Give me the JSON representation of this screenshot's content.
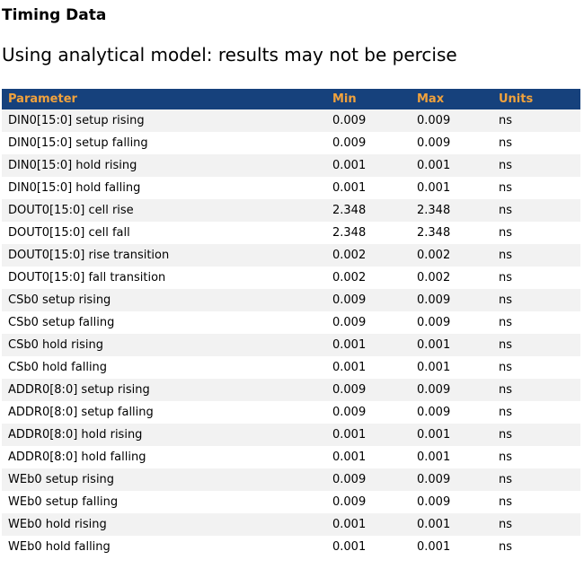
{
  "page": {
    "title": "Timing Data",
    "subtitle": "Using analytical model: results may not be percise"
  },
  "table": {
    "columns": [
      {
        "key": "parameter",
        "label": "Parameter"
      },
      {
        "key": "min",
        "label": "Min"
      },
      {
        "key": "max",
        "label": "Max"
      },
      {
        "key": "units",
        "label": "Units"
      }
    ],
    "rows": [
      {
        "parameter": "DIN0[15:0] setup rising",
        "min": "0.009",
        "max": "0.009",
        "units": "ns"
      },
      {
        "parameter": "DIN0[15:0] setup falling",
        "min": "0.009",
        "max": "0.009",
        "units": "ns"
      },
      {
        "parameter": "DIN0[15:0] hold rising",
        "min": "0.001",
        "max": "0.001",
        "units": "ns"
      },
      {
        "parameter": "DIN0[15:0] hold falling",
        "min": "0.001",
        "max": "0.001",
        "units": "ns"
      },
      {
        "parameter": "DOUT0[15:0] cell rise",
        "min": "2.348",
        "max": "2.348",
        "units": "ns"
      },
      {
        "parameter": "DOUT0[15:0] cell fall",
        "min": "2.348",
        "max": "2.348",
        "units": "ns"
      },
      {
        "parameter": "DOUT0[15:0] rise transition",
        "min": "0.002",
        "max": "0.002",
        "units": "ns"
      },
      {
        "parameter": "DOUT0[15:0] fall transition",
        "min": "0.002",
        "max": "0.002",
        "units": "ns"
      },
      {
        "parameter": "CSb0 setup rising",
        "min": "0.009",
        "max": "0.009",
        "units": "ns"
      },
      {
        "parameter": "CSb0 setup falling",
        "min": "0.009",
        "max": "0.009",
        "units": "ns"
      },
      {
        "parameter": "CSb0 hold rising",
        "min": "0.001",
        "max": "0.001",
        "units": "ns"
      },
      {
        "parameter": "CSb0 hold falling",
        "min": "0.001",
        "max": "0.001",
        "units": "ns"
      },
      {
        "parameter": "ADDR0[8:0] setup rising",
        "min": "0.009",
        "max": "0.009",
        "units": "ns"
      },
      {
        "parameter": "ADDR0[8:0] setup falling",
        "min": "0.009",
        "max": "0.009",
        "units": "ns"
      },
      {
        "parameter": "ADDR0[8:0] hold rising",
        "min": "0.001",
        "max": "0.001",
        "units": "ns"
      },
      {
        "parameter": "ADDR0[8:0] hold falling",
        "min": "0.001",
        "max": "0.001",
        "units": "ns"
      },
      {
        "parameter": "WEb0 setup rising",
        "min": "0.009",
        "max": "0.009",
        "units": "ns"
      },
      {
        "parameter": "WEb0 setup falling",
        "min": "0.009",
        "max": "0.009",
        "units": "ns"
      },
      {
        "parameter": "WEb0 hold rising",
        "min": "0.001",
        "max": "0.001",
        "units": "ns"
      },
      {
        "parameter": "WEb0 hold falling",
        "min": "0.001",
        "max": "0.001",
        "units": "ns"
      }
    ]
  },
  "colors": {
    "header_bg": "#16417C",
    "header_text": "#F1A23C",
    "row_alt_bg": "#F2F2F2",
    "row_bg": "#FFFFFF",
    "text": "#000000"
  }
}
